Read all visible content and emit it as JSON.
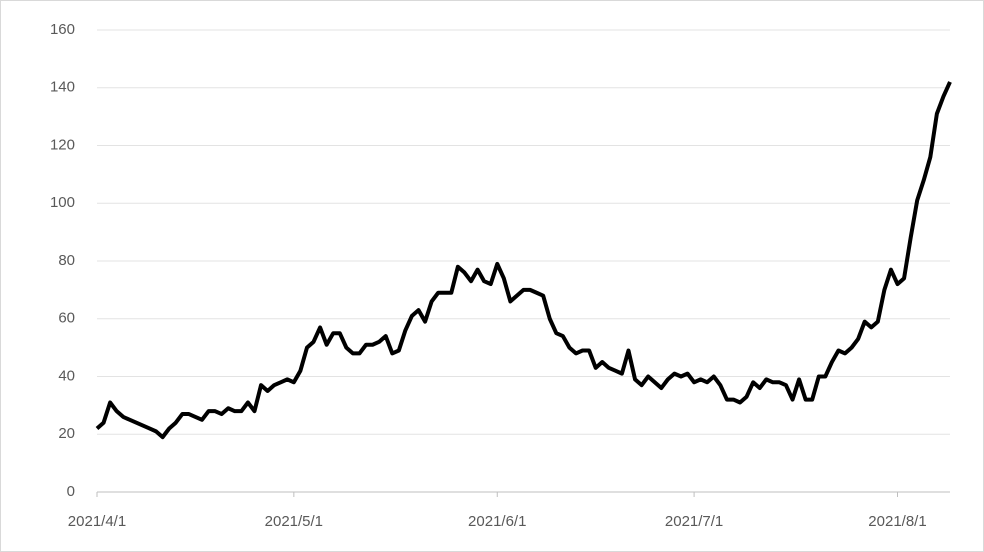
{
  "chart_data": {
    "type": "line",
    "x": [
      "2021/4/1",
      "2021/4/2",
      "2021/4/3",
      "2021/4/4",
      "2021/4/5",
      "2021/4/6",
      "2021/4/7",
      "2021/4/8",
      "2021/4/9",
      "2021/4/10",
      "2021/4/11",
      "2021/4/12",
      "2021/4/13",
      "2021/4/14",
      "2021/4/15",
      "2021/4/16",
      "2021/4/17",
      "2021/4/18",
      "2021/4/19",
      "2021/4/20",
      "2021/4/21",
      "2021/4/22",
      "2021/4/23",
      "2021/4/24",
      "2021/4/25",
      "2021/4/26",
      "2021/4/27",
      "2021/4/28",
      "2021/4/29",
      "2021/4/30",
      "2021/5/1",
      "2021/5/2",
      "2021/5/3",
      "2021/5/4",
      "2021/5/5",
      "2021/5/6",
      "2021/5/7",
      "2021/5/8",
      "2021/5/9",
      "2021/5/10",
      "2021/5/11",
      "2021/5/12",
      "2021/5/13",
      "2021/5/14",
      "2021/5/15",
      "2021/5/16",
      "2021/5/17",
      "2021/5/18",
      "2021/5/19",
      "2021/5/20",
      "2021/5/21",
      "2021/5/22",
      "2021/5/23",
      "2021/5/24",
      "2021/5/25",
      "2021/5/26",
      "2021/5/27",
      "2021/5/28",
      "2021/5/29",
      "2021/5/30",
      "2021/5/31",
      "2021/6/1",
      "2021/6/2",
      "2021/6/3",
      "2021/6/4",
      "2021/6/5",
      "2021/6/6",
      "2021/6/7",
      "2021/6/8",
      "2021/6/9",
      "2021/6/10",
      "2021/6/11",
      "2021/6/12",
      "2021/6/13",
      "2021/6/14",
      "2021/6/15",
      "2021/6/16",
      "2021/6/17",
      "2021/6/18",
      "2021/6/19",
      "2021/6/20",
      "2021/6/21",
      "2021/6/22",
      "2021/6/23",
      "2021/6/24",
      "2021/6/25",
      "2021/6/26",
      "2021/6/27",
      "2021/6/28",
      "2021/6/29",
      "2021/6/30",
      "2021/7/1",
      "2021/7/2",
      "2021/7/3",
      "2021/7/4",
      "2021/7/5",
      "2021/7/6",
      "2021/7/7",
      "2021/7/8",
      "2021/7/9",
      "2021/7/10",
      "2021/7/11",
      "2021/7/12",
      "2021/7/13",
      "2021/7/14",
      "2021/7/15",
      "2021/7/16",
      "2021/7/17",
      "2021/7/18",
      "2021/7/19",
      "2021/7/20",
      "2021/7/21",
      "2021/7/22",
      "2021/7/23",
      "2021/7/24",
      "2021/7/25",
      "2021/7/26",
      "2021/7/27",
      "2021/7/28",
      "2021/7/29",
      "2021/7/30",
      "2021/7/31",
      "2021/8/1",
      "2021/8/2",
      "2021/8/3",
      "2021/8/4",
      "2021/8/5",
      "2021/8/6",
      "2021/8/7",
      "2021/8/8",
      "2021/8/9"
    ],
    "series": [
      {
        "color": "#000000",
        "values": [
          22,
          24,
          31,
          28,
          26,
          25,
          24,
          23,
          22,
          21,
          19,
          22,
          24,
          27,
          27,
          26,
          25,
          28,
          28,
          27,
          29,
          28,
          28,
          31,
          28,
          37,
          35,
          37,
          38,
          39,
          38,
          42,
          50,
          52,
          57,
          51,
          55,
          55,
          50,
          48,
          48,
          51,
          51,
          52,
          54,
          48,
          49,
          56,
          61,
          63,
          59,
          66,
          69,
          69,
          69,
          78,
          76,
          73,
          77,
          73,
          72,
          79,
          74,
          66,
          68,
          70,
          70,
          69,
          68,
          60,
          55,
          54,
          50,
          48,
          49,
          49,
          43,
          45,
          43,
          42,
          41,
          49,
          39,
          37,
          40,
          38,
          36,
          39,
          41,
          40,
          41,
          38,
          39,
          38,
          40,
          37,
          32,
          32,
          31,
          33,
          38,
          36,
          39,
          38,
          38,
          37,
          32,
          39,
          32,
          32,
          40,
          40,
          45,
          49,
          48,
          50,
          53,
          59,
          57,
          59,
          70,
          77,
          72,
          74,
          88,
          101,
          108,
          116,
          131,
          137,
          142
        ]
      }
    ],
    "xlim": [
      "2021/4/1",
      "2021/8/9"
    ],
    "xticks": [
      "2021/4/1",
      "2021/5/1",
      "2021/6/1",
      "2021/7/1",
      "2021/8/1"
    ],
    "ylim": [
      0,
      160
    ],
    "yticks": [
      0,
      20,
      40,
      60,
      80,
      100,
      120,
      140,
      160
    ],
    "grid": true
  }
}
